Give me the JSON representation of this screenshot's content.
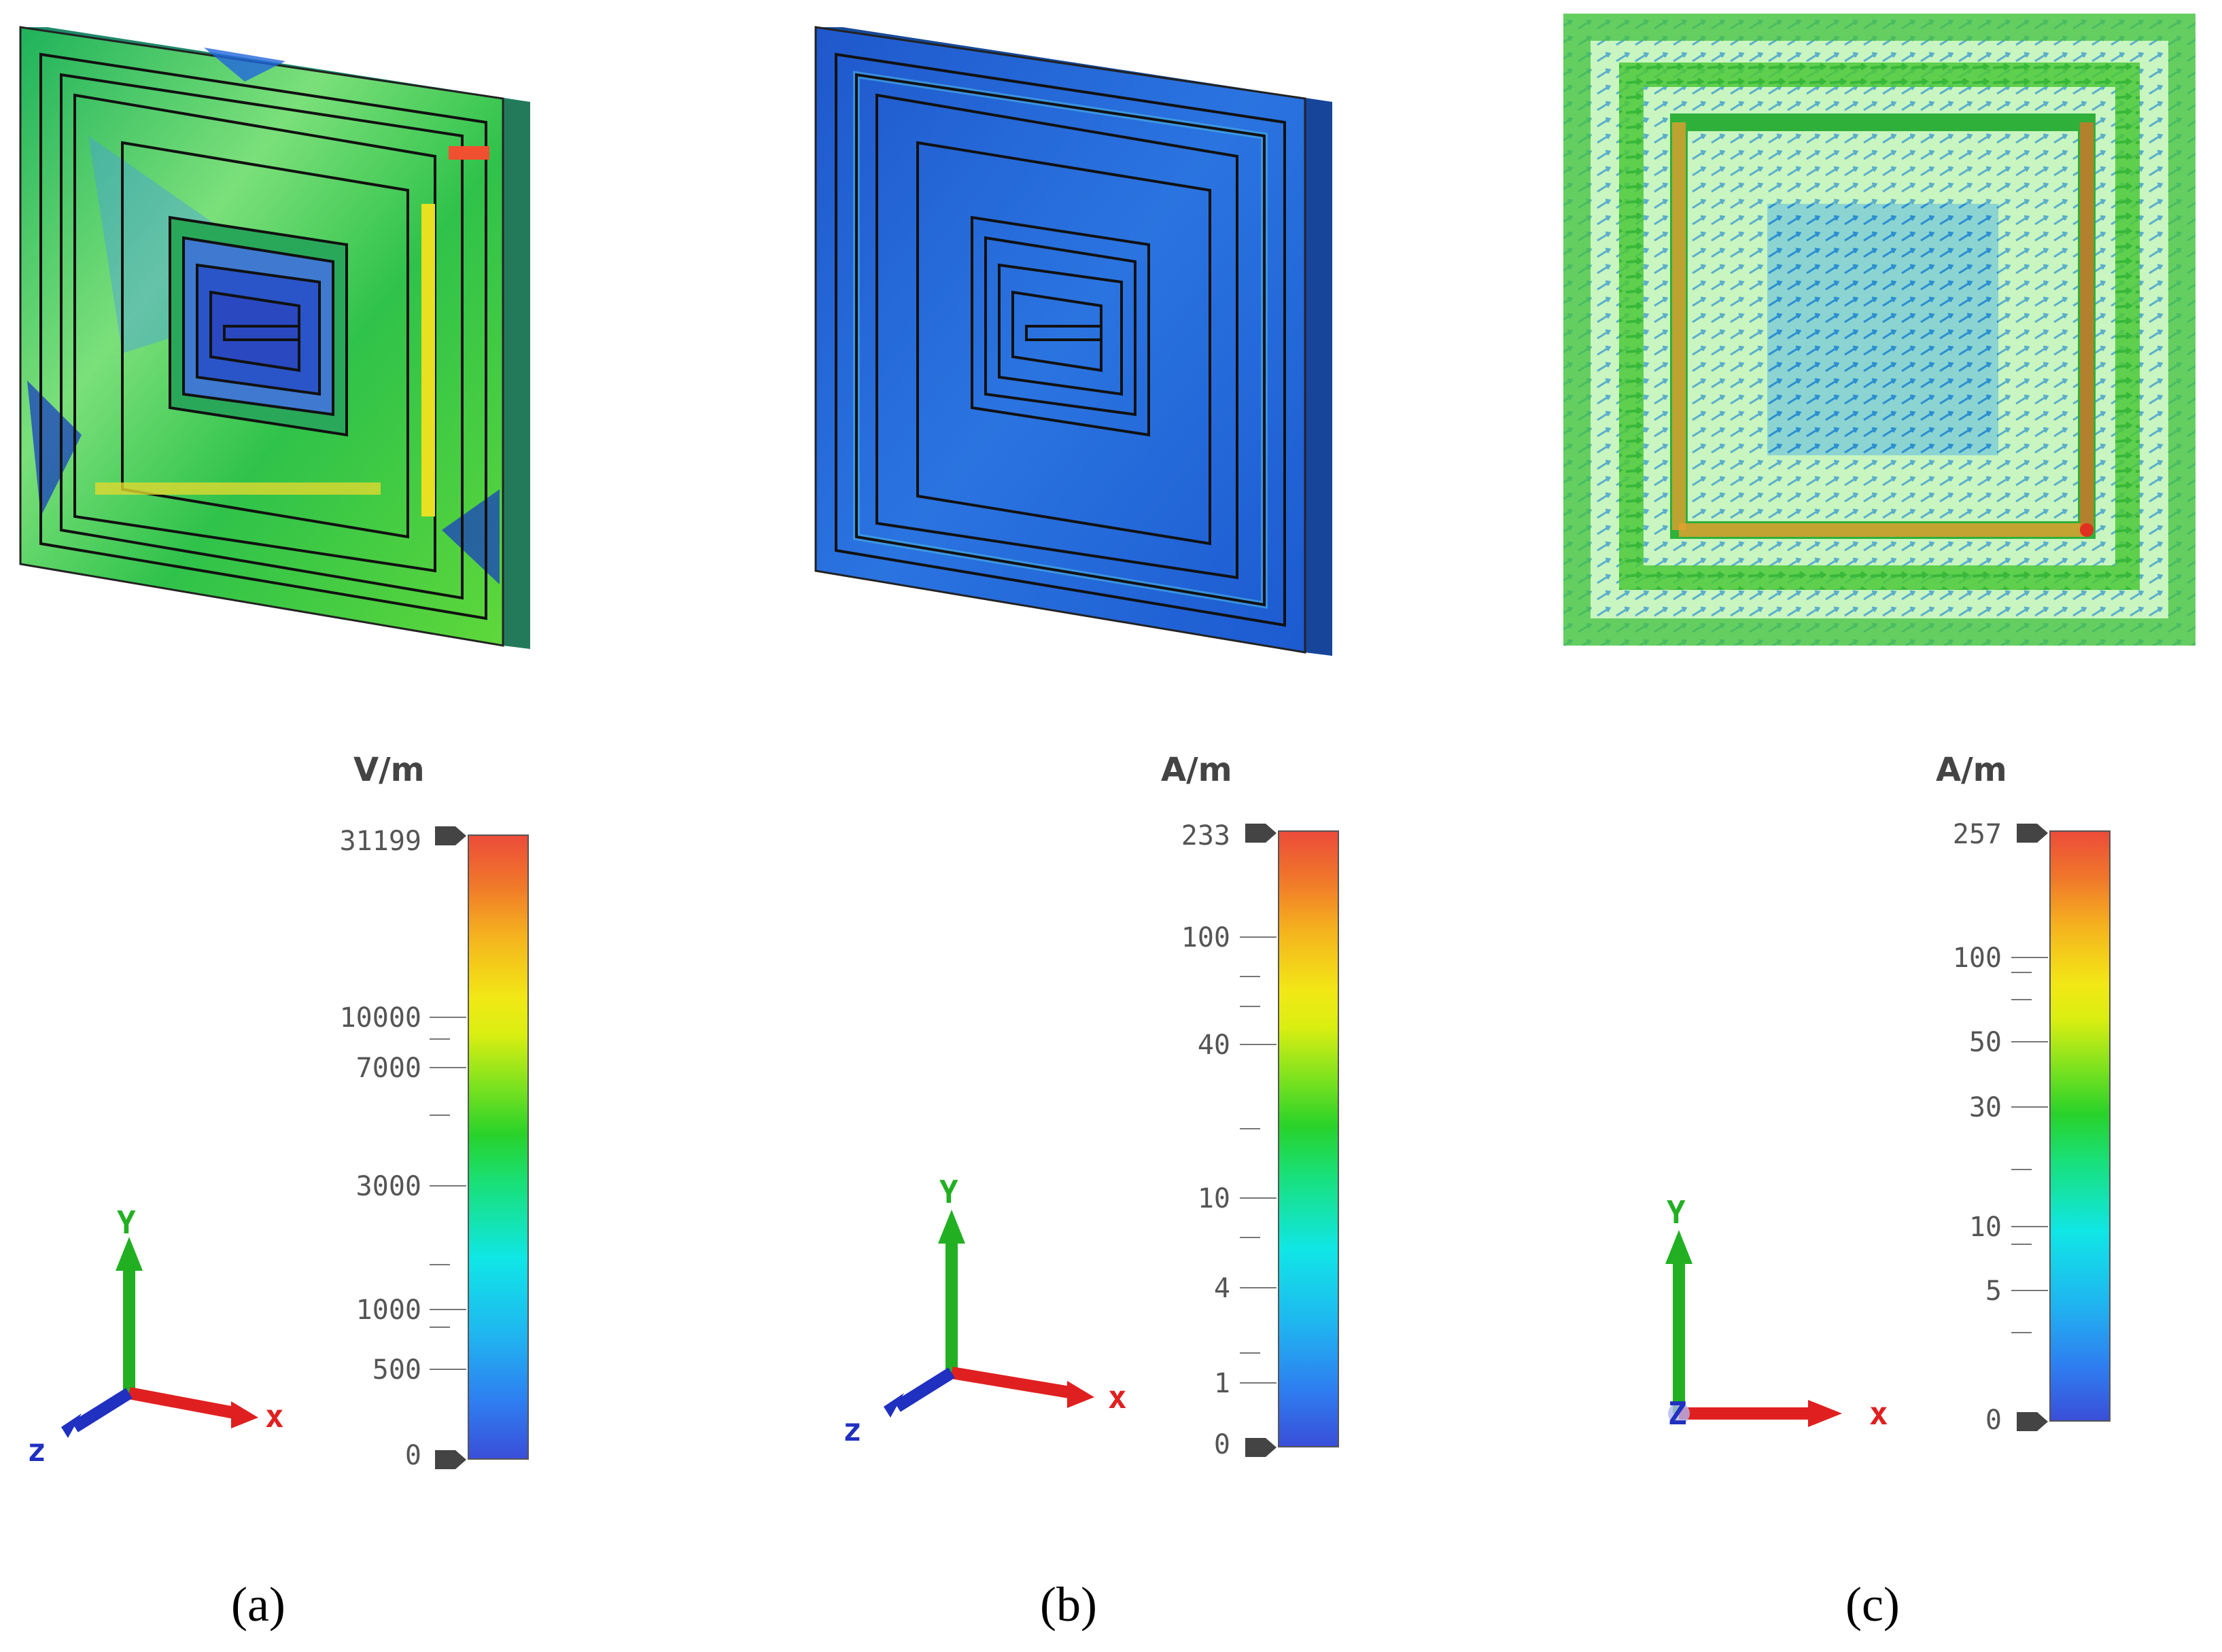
{
  "panels": [
    {
      "caption": "(a)",
      "unit": "V/m",
      "scale_labels": [
        "31199",
        "10000",
        "7000",
        "3000",
        "1000",
        "500",
        "0"
      ],
      "axes": {
        "y": "Y",
        "x": "x",
        "z": "z"
      },
      "field_icon": "electric-field-plot"
    },
    {
      "caption": "(b)",
      "unit": "A/m",
      "scale_labels": [
        "233",
        "100",
        "40",
        "10",
        "4",
        "1",
        "0"
      ],
      "axes": {
        "y": "Y",
        "x": "x",
        "z": "z"
      },
      "field_icon": "magnetic-field-plot"
    },
    {
      "caption": "(c)",
      "unit": "A/m",
      "scale_labels": [
        "257",
        "100",
        "50",
        "30",
        "10",
        "5",
        "0"
      ],
      "axes": {
        "y": "Y",
        "x": "x",
        "z": "Z"
      },
      "field_icon": "surface-current-vector-plot"
    }
  ],
  "colors": {
    "e_field_base": "#2ecc40",
    "h_field_base": "#1e5fd0",
    "current_bg": "#c8f5c0",
    "axis_x": "#e02020",
    "axis_y": "#22b022",
    "axis_z": "#2030c0"
  }
}
